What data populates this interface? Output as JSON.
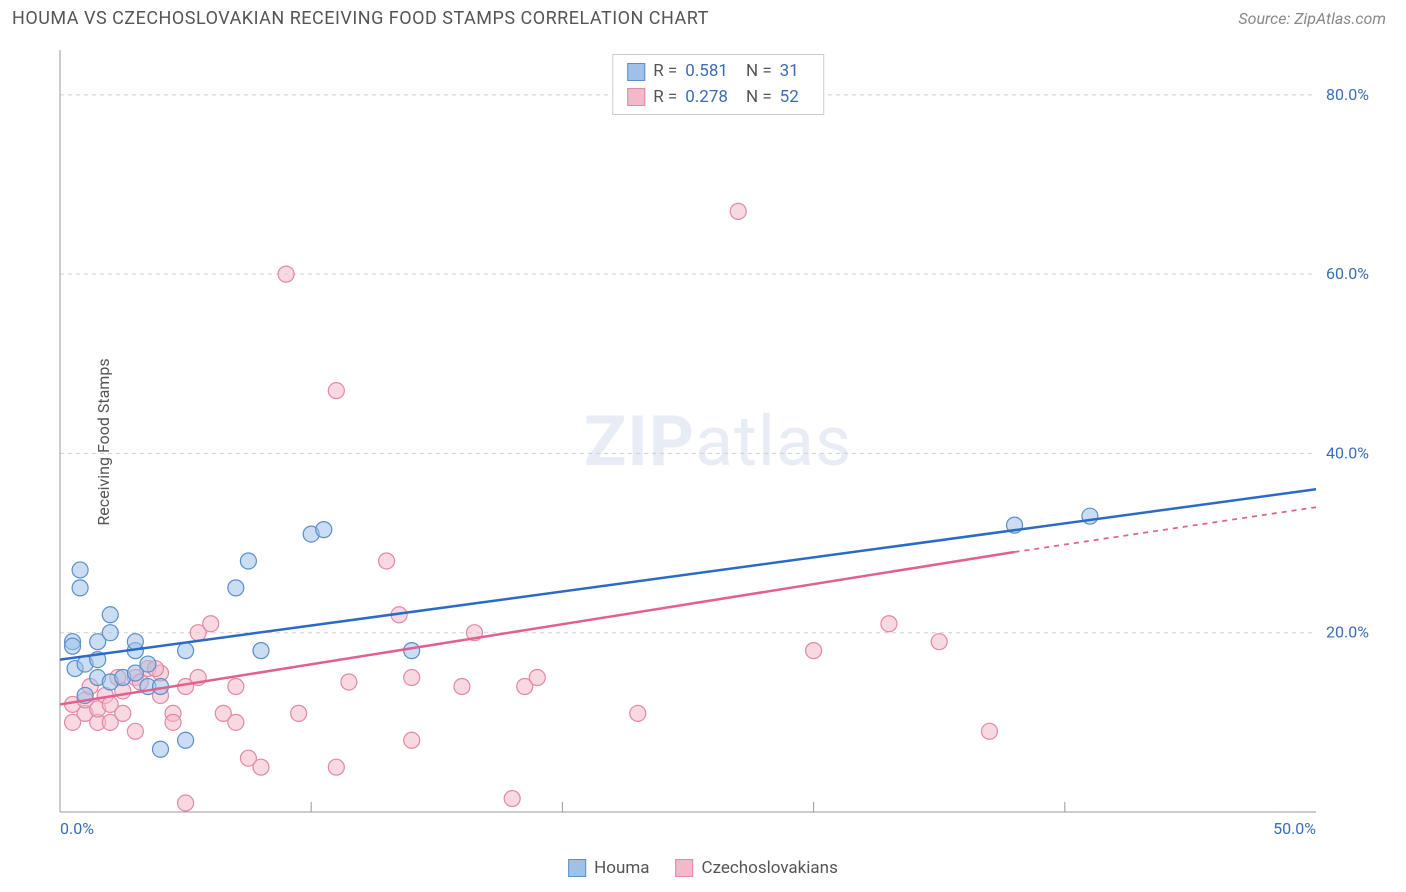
{
  "title": "HOUMA VS CZECHOSLOVAKIAN RECEIVING FOOD STAMPS CORRELATION CHART",
  "source": "Source: ZipAtlas.com",
  "watermark_bold": "ZIP",
  "watermark_light": "atlas",
  "chart": {
    "type": "scatter",
    "ylabel": "Receiving Food Stamps",
    "xlim": [
      0,
      50
    ],
    "ylim": [
      0,
      85
    ],
    "x_origin_label": "0.0%",
    "x_end_label": "50.0%",
    "y_ticks": [
      20,
      40,
      60,
      80
    ],
    "y_tick_labels": [
      "20.0%",
      "40.0%",
      "60.0%",
      "80.0%"
    ],
    "x_gridlines": [
      10,
      20,
      30,
      40
    ],
    "background_color": "#ffffff",
    "grid_color_dashed": "#d0d0d0",
    "axis_color": "#999999",
    "tick_label_color": "#3b6db5",
    "marker_radius": 8,
    "marker_stroke_width": 1.2,
    "series": [
      {
        "name": "Houma",
        "fill_color": "#9fc1e8",
        "stroke_color": "#5a8fc9",
        "fill_opacity": 0.55,
        "r_value": "0.581",
        "n_value": "31",
        "trend": {
          "x1": 0,
          "y1": 17,
          "x2": 50,
          "y2": 36,
          "extrapolate_from_x": 50,
          "color": "#2b6bc5",
          "width": 2.5
        },
        "points": [
          [
            0.5,
            19
          ],
          [
            0.5,
            18.5
          ],
          [
            0.8,
            27
          ],
          [
            0.8,
            25
          ],
          [
            0.6,
            16
          ],
          [
            1.0,
            16.5
          ],
          [
            1.0,
            13
          ],
          [
            1.5,
            19
          ],
          [
            1.5,
            17
          ],
          [
            1.5,
            15
          ],
          [
            2.0,
            14.5
          ],
          [
            2.0,
            20
          ],
          [
            2.0,
            22
          ],
          [
            2.5,
            15
          ],
          [
            3,
            15.5
          ],
          [
            3,
            18
          ],
          [
            3.5,
            14
          ],
          [
            3.5,
            16.5
          ],
          [
            4,
            7
          ],
          [
            4,
            14
          ],
          [
            5,
            18
          ],
          [
            5,
            8
          ],
          [
            7,
            25
          ],
          [
            7.5,
            28
          ],
          [
            8,
            18
          ],
          [
            10,
            31
          ],
          [
            10.5,
            31.5
          ],
          [
            14,
            18
          ],
          [
            38,
            32
          ],
          [
            41,
            33
          ],
          [
            3,
            19
          ]
        ]
      },
      {
        "name": "Czechoslovakians",
        "fill_color": "#f3b8c9",
        "stroke_color": "#e488a4",
        "fill_opacity": 0.55,
        "r_value": "0.278",
        "n_value": "52",
        "trend": {
          "x1": 0,
          "y1": 12,
          "x2": 38,
          "y2": 29,
          "extrapolate_from_x": 38,
          "extrapolate_to_x": 50,
          "extrapolate_to_y": 34,
          "color": "#e26091",
          "width": 2.5
        },
        "points": [
          [
            0.5,
            12
          ],
          [
            0.5,
            10
          ],
          [
            1,
            11
          ],
          [
            1,
            12.5
          ],
          [
            1.2,
            14
          ],
          [
            1.5,
            10
          ],
          [
            1.5,
            11.5
          ],
          [
            1.8,
            13
          ],
          [
            2,
            12
          ],
          [
            2,
            10
          ],
          [
            2.3,
            15
          ],
          [
            2.5,
            13.5
          ],
          [
            2.5,
            11
          ],
          [
            3,
            15
          ],
          [
            3,
            9
          ],
          [
            3.2,
            14.5
          ],
          [
            3.5,
            16
          ],
          [
            4,
            13
          ],
          [
            4,
            15.5
          ],
          [
            4.5,
            11
          ],
          [
            4.5,
            10
          ],
          [
            5,
            1
          ],
          [
            5,
            14
          ],
          [
            5.5,
            15
          ],
          [
            5.5,
            20
          ],
          [
            6,
            21
          ],
          [
            6.5,
            11
          ],
          [
            7,
            10
          ],
          [
            7,
            14
          ],
          [
            7.5,
            6
          ],
          [
            8,
            5
          ],
          [
            9,
            60
          ],
          [
            9.5,
            11
          ],
          [
            11,
            5
          ],
          [
            11,
            47
          ],
          [
            11.5,
            14.5
          ],
          [
            13,
            28
          ],
          [
            13.5,
            22
          ],
          [
            14,
            15
          ],
          [
            14,
            8
          ],
          [
            16,
            14
          ],
          [
            16.5,
            20
          ],
          [
            18,
            1.5
          ],
          [
            18.5,
            14
          ],
          [
            19,
            15
          ],
          [
            23,
            11
          ],
          [
            27,
            67
          ],
          [
            30,
            18
          ],
          [
            33,
            21
          ],
          [
            35,
            19
          ],
          [
            37,
            9
          ],
          [
            3.8,
            16
          ]
        ]
      }
    ],
    "legend_bottom": [
      {
        "label": "Houma",
        "fill": "#9fc1e8",
        "stroke": "#5a8fc9"
      },
      {
        "label": "Czechoslovakians",
        "fill": "#f3b8c9",
        "stroke": "#e488a4"
      }
    ]
  }
}
